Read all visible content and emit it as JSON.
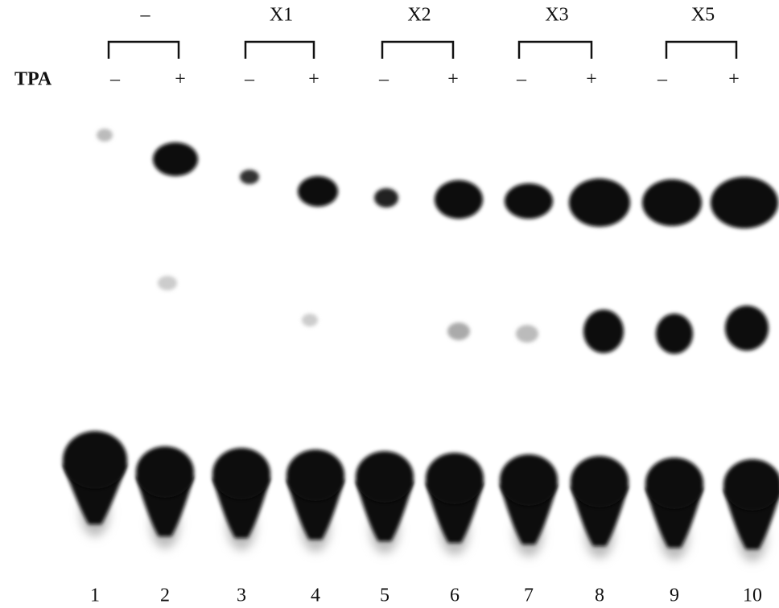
{
  "row_label": "TPA",
  "groups": [
    {
      "label": "–",
      "lanes": [
        {
          "tpa": "–",
          "number": "1"
        },
        {
          "tpa": "+",
          "number": "2"
        }
      ]
    },
    {
      "label": "X1",
      "lanes": [
        {
          "tpa": "–",
          "number": "3"
        },
        {
          "tpa": "+",
          "number": "4"
        }
      ]
    },
    {
      "label": "X2",
      "lanes": [
        {
          "tpa": "–",
          "number": "5"
        },
        {
          "tpa": "+",
          "number": "6"
        }
      ]
    },
    {
      "label": "X3",
      "lanes": [
        {
          "tpa": "–",
          "number": "7"
        },
        {
          "tpa": "+",
          "number": "8"
        }
      ]
    },
    {
      "label": "X5",
      "lanes": [
        {
          "tpa": "–",
          "number": "9"
        },
        {
          "tpa": "+",
          "number": "10"
        }
      ]
    }
  ]
}
